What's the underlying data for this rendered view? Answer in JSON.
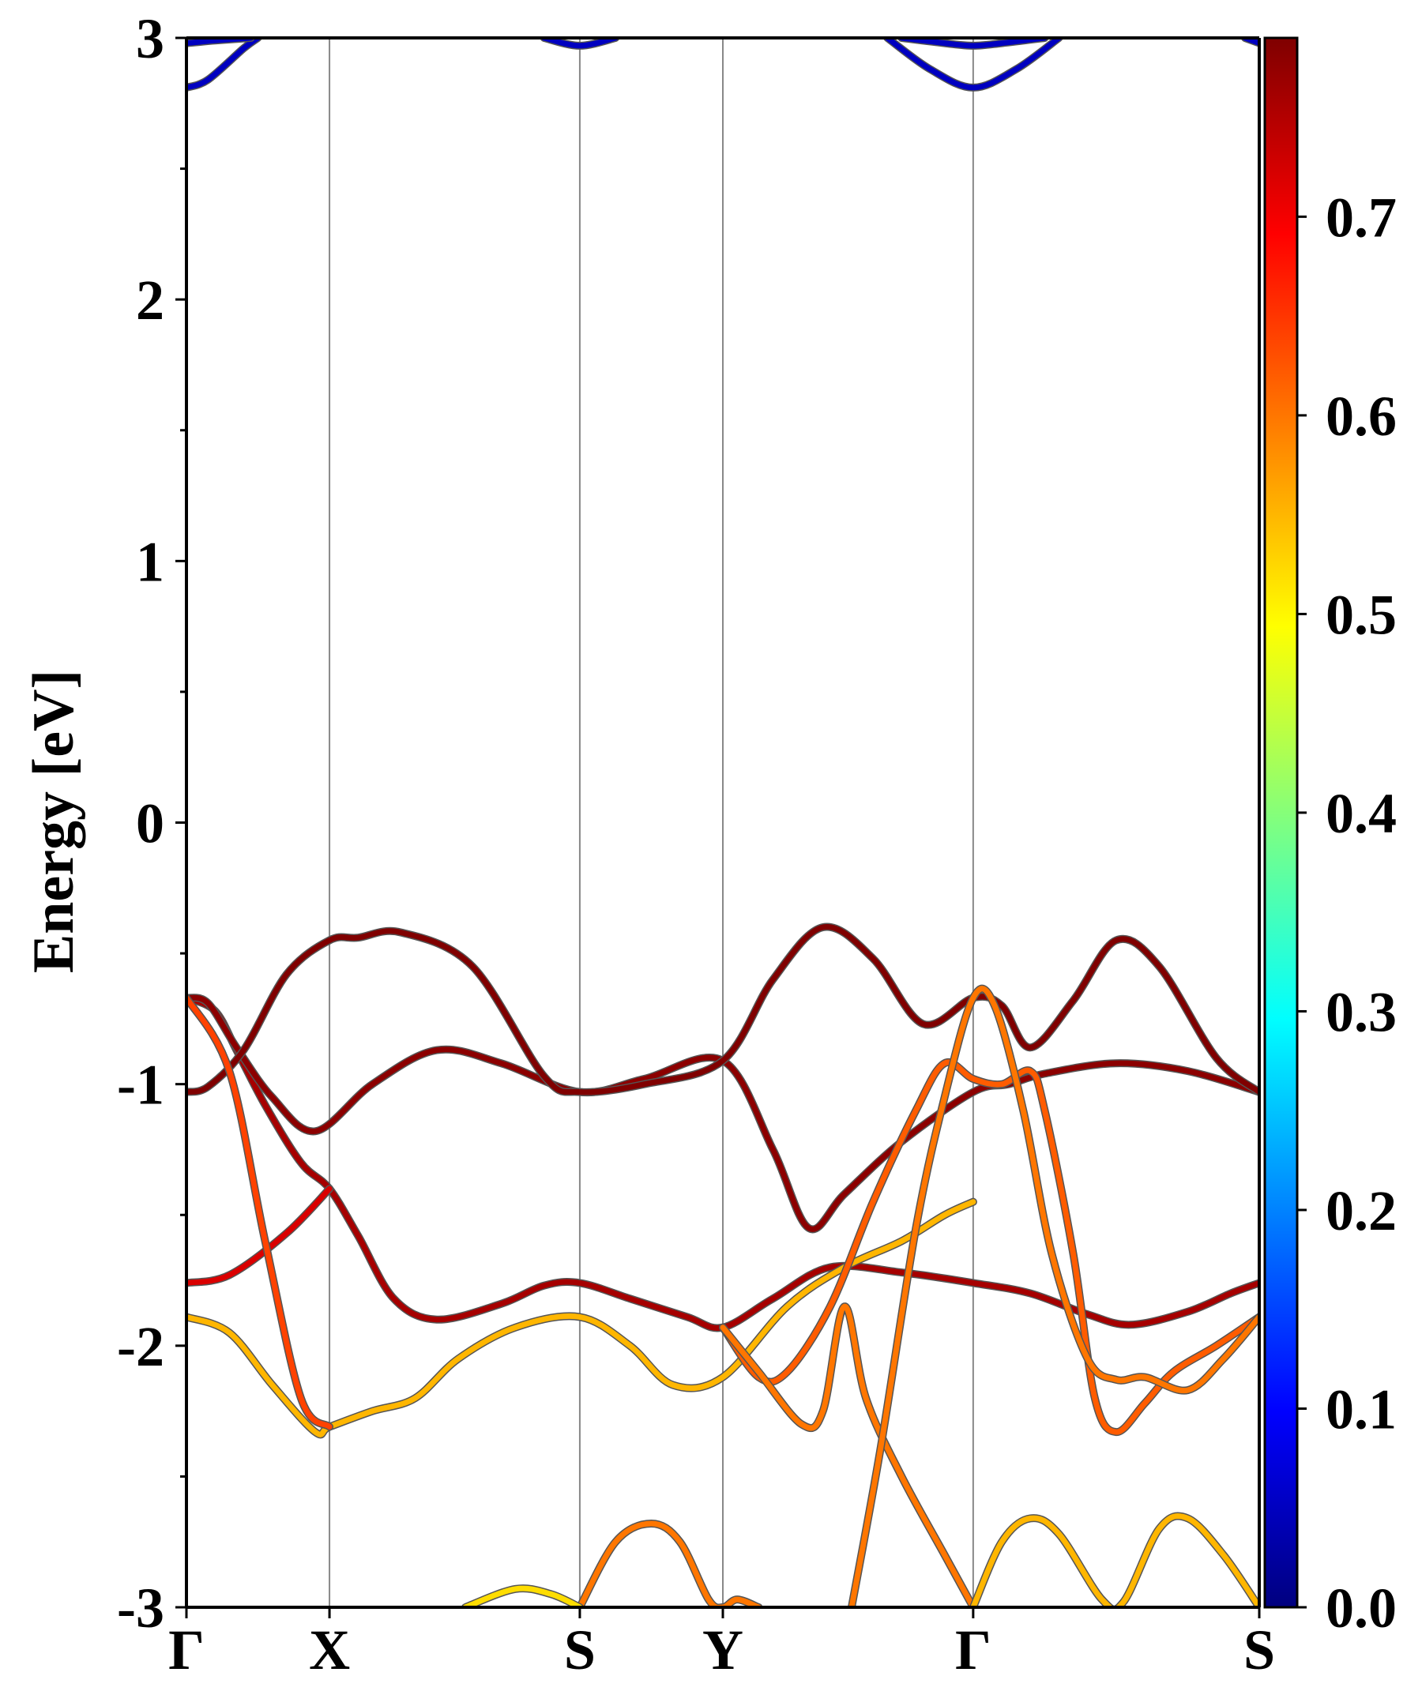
{
  "chart_data": {
    "type": "line",
    "title": "",
    "xlabel": "",
    "ylabel": "Energy [eV]",
    "ylim": [
      -3,
      3
    ],
    "yticks": [
      "-3",
      "-2",
      "-1",
      "0",
      "1",
      "2",
      "3"
    ],
    "high_symmetry_points": [
      {
        "label": "Γ",
        "k": 0
      },
      {
        "label": "X",
        "k": 1
      },
      {
        "label": "S",
        "k": 2.75
      },
      {
        "label": "Y",
        "k": 3.75
      },
      {
        "label": "Γ",
        "k": 5.5
      },
      {
        "label": "S",
        "k": 7.5
      }
    ],
    "colorbar": {
      "colormap": "jet",
      "range": [
        0.0,
        0.79
      ],
      "ticks": [
        "0.0",
        "0.1",
        "0.2",
        "0.3",
        "0.4",
        "0.5",
        "0.6",
        "0.7"
      ]
    },
    "series": [
      {
        "weight": 0.76,
        "points": [
          [
            0,
            -0.67
          ],
          [
            0.2,
            -0.72
          ],
          [
            0.35,
            -0.87
          ],
          [
            0.55,
            -1.08
          ],
          [
            0.8,
            -1.3
          ],
          [
            1.0,
            -1.4
          ],
          [
            1.2,
            -1.58
          ],
          [
            1.45,
            -1.82
          ],
          [
            1.75,
            -1.9
          ],
          [
            2.2,
            -1.84
          ],
          [
            2.5,
            -1.77
          ],
          [
            2.75,
            -1.76
          ],
          [
            3.1,
            -1.82
          ],
          [
            3.5,
            -1.89
          ],
          [
            3.75,
            -1.93
          ],
          [
            4.1,
            -1.82
          ],
          [
            4.5,
            -1.7
          ],
          [
            5.0,
            -1.72
          ],
          [
            5.5,
            -1.76
          ],
          [
            5.9,
            -1.8
          ],
          [
            6.3,
            -1.88
          ],
          [
            6.6,
            -1.92
          ],
          [
            7.0,
            -1.87
          ],
          [
            7.3,
            -1.8
          ],
          [
            7.5,
            -1.76
          ]
        ]
      },
      {
        "weight": 0.78,
        "points": [
          [
            0,
            -0.67
          ],
          [
            0.15,
            -0.69
          ],
          [
            0.35,
            -0.86
          ],
          [
            0.6,
            -1.05
          ],
          [
            0.9,
            -1.18
          ],
          [
            1.3,
            -1.0
          ],
          [
            1.75,
            -0.87
          ],
          [
            2.2,
            -0.92
          ],
          [
            2.75,
            -1.03
          ],
          [
            3.2,
            -0.98
          ],
          [
            3.75,
            -0.91
          ],
          [
            4.1,
            -1.25
          ],
          [
            4.35,
            -1.55
          ],
          [
            4.6,
            -1.42
          ],
          [
            5.0,
            -1.22
          ],
          [
            5.5,
            -1.03
          ],
          [
            5.75,
            -1.0
          ],
          [
            6.0,
            -0.96
          ],
          [
            6.5,
            -0.92
          ],
          [
            7.0,
            -0.95
          ],
          [
            7.5,
            -1.03
          ]
        ]
      },
      {
        "weight": 0.79,
        "points": [
          [
            0,
            -1.03
          ],
          [
            0.15,
            -1.01
          ],
          [
            0.4,
            -0.87
          ],
          [
            0.7,
            -0.58
          ],
          [
            1.0,
            -0.45
          ],
          [
            1.2,
            -0.44
          ],
          [
            1.5,
            -0.42
          ],
          [
            2.0,
            -0.55
          ],
          [
            2.5,
            -0.97
          ],
          [
            2.75,
            -1.03
          ],
          [
            3.2,
            -1.0
          ],
          [
            3.75,
            -0.91
          ],
          [
            4.1,
            -0.6
          ],
          [
            4.45,
            -0.4
          ],
          [
            4.8,
            -0.52
          ],
          [
            5.15,
            -0.77
          ],
          [
            5.5,
            -0.67
          ],
          [
            5.7,
            -0.7
          ],
          [
            5.9,
            -0.86
          ],
          [
            6.2,
            -0.68
          ],
          [
            6.5,
            -0.45
          ],
          [
            6.8,
            -0.55
          ],
          [
            7.2,
            -0.9
          ],
          [
            7.5,
            -1.03
          ]
        ]
      },
      {
        "weight": 0.72,
        "points": [
          [
            0,
            -1.76
          ],
          [
            0.3,
            -1.73
          ],
          [
            0.7,
            -1.57
          ],
          [
            1.0,
            -1.4
          ]
        ]
      },
      {
        "weight": 0.55,
        "points": [
          [
            0,
            -1.89
          ],
          [
            0.3,
            -1.95
          ],
          [
            0.6,
            -2.15
          ],
          [
            0.9,
            -2.33
          ],
          [
            1.0,
            -2.31
          ],
          [
            1.3,
            -2.25
          ],
          [
            1.6,
            -2.2
          ],
          [
            1.9,
            -2.05
          ],
          [
            2.3,
            -1.93
          ],
          [
            2.75,
            -1.89
          ],
          [
            3.1,
            -2.0
          ],
          [
            3.4,
            -2.15
          ],
          [
            3.75,
            -2.12
          ],
          [
            4.2,
            -1.85
          ],
          [
            4.6,
            -1.7
          ],
          [
            5.0,
            -1.6
          ],
          [
            5.3,
            -1.5
          ],
          [
            5.5,
            -1.45
          ]
        ]
      },
      {
        "weight": 0.62,
        "points": [
          [
            3.75,
            -1.93
          ],
          [
            4.0,
            -2.12
          ],
          [
            4.2,
            -2.1
          ],
          [
            4.5,
            -1.85
          ],
          [
            4.8,
            -1.45
          ],
          [
            5.1,
            -1.1
          ],
          [
            5.3,
            -0.92
          ],
          [
            5.5,
            -0.98
          ],
          [
            5.7,
            -1.0
          ],
          [
            5.9,
            -0.95
          ],
          [
            6.0,
            -1.1
          ],
          [
            6.2,
            -1.65
          ],
          [
            6.35,
            -2.2
          ],
          [
            6.5,
            -2.33
          ],
          [
            6.7,
            -2.22
          ],
          [
            6.9,
            -2.1
          ],
          [
            7.2,
            -2.0
          ],
          [
            7.5,
            -1.89
          ]
        ]
      },
      {
        "weight": 0.64,
        "points": [
          [
            0,
            -0.67
          ],
          [
            0.3,
            -0.95
          ],
          [
            0.55,
            -1.6
          ],
          [
            0.8,
            -2.2
          ],
          [
            1.0,
            -2.31
          ]
        ]
      },
      {
        "weight": 0.6,
        "points": [
          [
            3.75,
            -1.93
          ],
          [
            4.0,
            -2.1
          ],
          [
            4.3,
            -2.3
          ],
          [
            4.45,
            -2.25
          ],
          [
            4.6,
            -1.85
          ],
          [
            4.75,
            -2.2
          ],
          [
            5.0,
            -2.5
          ],
          [
            5.3,
            -2.8
          ],
          [
            5.5,
            -3.0
          ]
        ]
      },
      {
        "weight": 0.6,
        "points": [
          [
            4.65,
            -3.0
          ],
          [
            4.85,
            -2.4
          ],
          [
            5.1,
            -1.55
          ],
          [
            5.3,
            -1.05
          ],
          [
            5.5,
            -0.67
          ],
          [
            5.65,
            -0.7
          ],
          [
            5.85,
            -1.1
          ],
          [
            6.05,
            -1.65
          ],
          [
            6.3,
            -2.05
          ],
          [
            6.5,
            -2.13
          ],
          [
            6.7,
            -2.12
          ],
          [
            7.0,
            -2.17
          ],
          [
            7.25,
            -2.05
          ],
          [
            7.5,
            -1.89
          ]
        ]
      },
      {
        "weight": 0.55,
        "points": [
          [
            5.5,
            -3.0
          ],
          [
            5.7,
            -2.75
          ],
          [
            5.9,
            -2.66
          ],
          [
            6.1,
            -2.72
          ],
          [
            6.4,
            -2.97
          ],
          [
            6.55,
            -2.98
          ],
          [
            6.8,
            -2.7
          ],
          [
            7.0,
            -2.66
          ],
          [
            7.25,
            -2.8
          ],
          [
            7.5,
            -3.0
          ]
        ]
      },
      {
        "weight": 0.6,
        "points": [
          [
            2.75,
            -3.0
          ],
          [
            3.0,
            -2.75
          ],
          [
            3.25,
            -2.68
          ],
          [
            3.45,
            -2.75
          ],
          [
            3.65,
            -2.97
          ],
          [
            3.75,
            -3.0
          ],
          [
            3.85,
            -2.97
          ],
          [
            4.0,
            -3.0
          ]
        ]
      },
      {
        "weight": 0.52,
        "points": [
          [
            1.95,
            -3.0
          ],
          [
            2.3,
            -2.93
          ],
          [
            2.55,
            -2.95
          ],
          [
            2.75,
            -3.0
          ]
        ]
      },
      {
        "weight": 0.05,
        "points": [
          [
            0,
            2.81
          ],
          [
            0.15,
            2.84
          ],
          [
            0.4,
            2.96
          ],
          [
            0.5,
            3.0
          ]
        ]
      },
      {
        "weight": 0.05,
        "points": [
          [
            0,
            2.98
          ],
          [
            0.2,
            2.99
          ],
          [
            0.45,
            3.0
          ]
        ]
      },
      {
        "weight": 0.05,
        "points": [
          [
            2.5,
            3.0
          ],
          [
            2.75,
            2.97
          ],
          [
            3.0,
            3.0
          ]
        ]
      },
      {
        "weight": 0.05,
        "points": [
          [
            4.9,
            3.0
          ],
          [
            5.2,
            2.88
          ],
          [
            5.5,
            2.81
          ],
          [
            5.8,
            2.88
          ],
          [
            6.1,
            3.0
          ]
        ]
      },
      {
        "weight": 0.05,
        "points": [
          [
            5.0,
            3.0
          ],
          [
            5.3,
            2.98
          ],
          [
            5.5,
            2.97
          ],
          [
            5.7,
            2.98
          ],
          [
            6.0,
            3.0
          ]
        ]
      },
      {
        "weight": 0.05,
        "points": [
          [
            7.4,
            3.0
          ],
          [
            7.5,
            2.98
          ]
        ]
      }
    ]
  }
}
